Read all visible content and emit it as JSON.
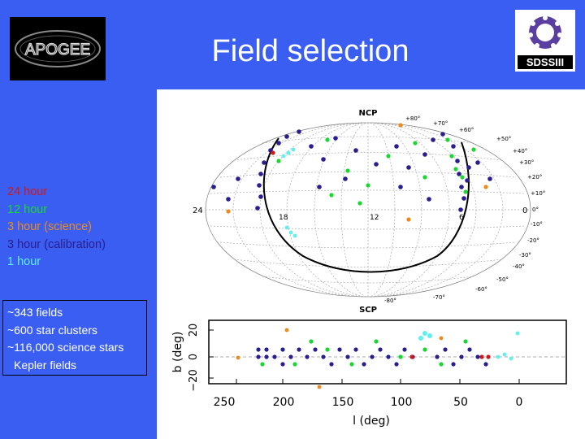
{
  "slide": {
    "title": "Field selection",
    "background": "#3a5ef2",
    "logo_left_text": "APOGEE",
    "logo_right_text": "SDSSIII"
  },
  "legend": [
    {
      "label": "24 hour",
      "color": "#d01818"
    },
    {
      "label": "12 hour",
      "color": "#19d832"
    },
    {
      "label": "3 hour (science)",
      "color": "#ee8a1a"
    },
    {
      "label": "3 hour (calibration)",
      "color": "#2a1d8e"
    },
    {
      "label": "1 hour",
      "color": "#5ff0f0"
    }
  ],
  "stats": [
    "~343 fields",
    "~600 star clusters",
    "~116,000 science stars",
    "Kepler fields"
  ],
  "skymap": {
    "top_label": "NCP",
    "bottom_label": "SCP",
    "left_label": "24",
    "right_label": "0",
    "ra_labels": [
      "18",
      "12",
      "6"
    ],
    "dec_right": [
      "+50°",
      "+40°",
      "+30°",
      "+20°",
      "+10°",
      "0°",
      "-10°",
      "-20°",
      "-30°",
      "-40°",
      "-50°",
      "-60°"
    ],
    "dec_top": [
      "+80°",
      "+70°",
      "+60°"
    ],
    "dec_bottom": [
      "-80°",
      "-70°"
    ]
  },
  "strip": {
    "xlabel": "l (deg)",
    "ylabel": "b (deg)",
    "x_ticks": [
      "250",
      "200",
      "150",
      "100",
      "50",
      "0"
    ],
    "y_ticks": [
      "20",
      "0",
      "−20"
    ]
  }
}
